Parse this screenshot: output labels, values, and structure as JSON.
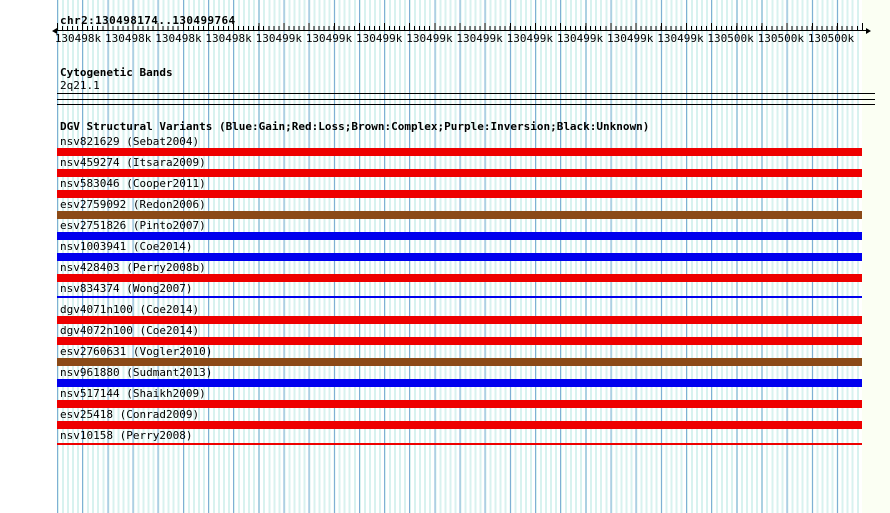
{
  "colors": {
    "red": "#ee0000",
    "blue": "#0000ee",
    "brown": "#8b4a17",
    "grid_minor": "#d8f2ef",
    "grid_major": "#7fb0d4"
  },
  "region": {
    "title": "chr2:130498174..130499764"
  },
  "ruler": {
    "tick_labels": [
      "130498k",
      "130498k",
      "130498k",
      "130498k",
      "130499k",
      "130499k",
      "130499k",
      "130499k",
      "130499k",
      "130499k",
      "130499k",
      "130499k",
      "130499k",
      "130500k",
      "130500k",
      "130500k"
    ]
  },
  "cytobands": {
    "title": "Cytogenetic Bands",
    "band": "2q21.1"
  },
  "dgv": {
    "header": "DGV Structural Variants (Blue:Gain;Red:Loss;Brown:Complex;Purple:Inversion;Black:Unknown)",
    "tracks": [
      {
        "label": "nsv821629 (Sebat2004)",
        "color": "red",
        "style": "bar"
      },
      {
        "label": "nsv459274 (Itsara2009)",
        "color": "red",
        "style": "bar"
      },
      {
        "label": "nsv583046 (Cooper2011)",
        "color": "red",
        "style": "bar"
      },
      {
        "label": "esv2759092 (Redon2006)",
        "color": "brown",
        "style": "bar"
      },
      {
        "label": "esv2751826 (Pinto2007)",
        "color": "blue",
        "style": "bar"
      },
      {
        "label": "nsv1003941 (Coe2014)",
        "color": "blue",
        "style": "bar"
      },
      {
        "label": "nsv428403 (Perry2008b)",
        "color": "red",
        "style": "bar"
      },
      {
        "label": "nsv834374 (Wong2007)",
        "color": "blue",
        "style": "line"
      },
      {
        "label": "dgv4071n100 (Coe2014)",
        "color": "red",
        "style": "bar"
      },
      {
        "label": "dgv4072n100 (Coe2014)",
        "color": "red",
        "style": "bar"
      },
      {
        "label": "esv2760631 (Vogler2010)",
        "color": "brown",
        "style": "bar"
      },
      {
        "label": "nsv961880 (Sudmant2013)",
        "color": "blue",
        "style": "bar"
      },
      {
        "label": "nsv517144 (Shaikh2009)",
        "color": "red",
        "style": "bar"
      },
      {
        "label": "esv25418 (Conrad2009)",
        "color": "red",
        "style": "bar"
      },
      {
        "label": "nsv10158 (Perry2008)",
        "color": "red",
        "style": "line"
      }
    ]
  }
}
